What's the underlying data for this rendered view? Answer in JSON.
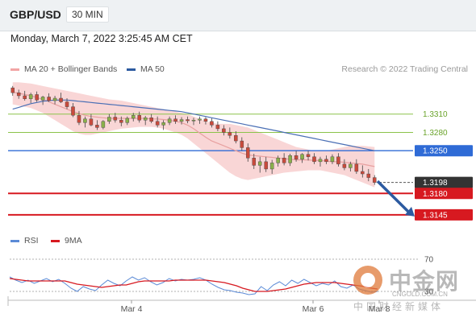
{
  "header": {
    "pair": "GBP/USD",
    "timeframe": "30 MIN"
  },
  "datetime": "Monday, March 7, 2022 3:25:45 AM CET",
  "credit": "Research © 2022 Trading Central",
  "legend": {
    "bollinger": "MA 20 + Bollinger Bands",
    "ma50": "MA 50",
    "rsi": "RSI",
    "ma9": "9MA"
  },
  "colors": {
    "bull": "#8ab04a",
    "bear": "#c94a3c",
    "bollinger": "#f2a5a5",
    "ma20": "#e8a0a0",
    "ma50": "#4a6fb5",
    "support": "#d71920",
    "resistance": "#8bc34a",
    "pivot": "#2f6bd6",
    "last": "#333333",
    "rsi": "#5b8ad6",
    "ma9": "#d71920"
  },
  "icons": {
    "arrow": "down-right-arrow-icon",
    "logo": "cngold-logo-icon"
  },
  "watermark": {
    "brand": "中金网",
    "url": "CNGOLD.COM.CN",
    "tagline": "中国财经新媒体"
  },
  "chart_data": [
    {
      "type": "line",
      "title": "GBP/USD",
      "timeframe": "30 MIN",
      "xlabel": "",
      "ylabel": "",
      "x_ticks": [
        "Mar 4",
        "Mar 6",
        "Mar 8"
      ],
      "ylim": [
        1.3125,
        1.3365
      ],
      "grid": false,
      "legend": "top-left",
      "levels": [
        {
          "label": "1.3310",
          "value": 1.331,
          "kind": "resistance"
        },
        {
          "label": "1.3280",
          "value": 1.328,
          "kind": "resistance"
        },
        {
          "label": "1.3250",
          "value": 1.325,
          "kind": "pivot"
        },
        {
          "label": "1.3198",
          "value": 1.3198,
          "kind": "last"
        },
        {
          "label": "1.3180",
          "value": 1.318,
          "kind": "support"
        },
        {
          "label": "1.3145",
          "value": 1.3145,
          "kind": "support"
        }
      ],
      "last_price": 1.3198,
      "projection": {
        "from": 1.32,
        "to": 1.3145,
        "direction": "down"
      },
      "candles": [
        [
          1.3353,
          1.3356,
          1.334,
          1.3345
        ],
        [
          1.3345,
          1.335,
          1.3335,
          1.334
        ],
        [
          1.334,
          1.3348,
          1.3332,
          1.3335
        ],
        [
          1.3335,
          1.3345,
          1.3328,
          1.3342
        ],
        [
          1.3342,
          1.3347,
          1.333,
          1.3333
        ],
        [
          1.3333,
          1.334,
          1.3325,
          1.3338
        ],
        [
          1.3338,
          1.3344,
          1.333,
          1.3332
        ],
        [
          1.3332,
          1.334,
          1.3326,
          1.3336
        ],
        [
          1.3336,
          1.3345,
          1.3328,
          1.333
        ],
        [
          1.333,
          1.3336,
          1.3318,
          1.3322
        ],
        [
          1.3322,
          1.3328,
          1.3305,
          1.3308
        ],
        [
          1.3308,
          1.3315,
          1.3292,
          1.3296
        ],
        [
          1.3296,
          1.3306,
          1.3288,
          1.3302
        ],
        [
          1.3302,
          1.331,
          1.329,
          1.3292
        ],
        [
          1.3292,
          1.33,
          1.3284,
          1.3288
        ],
        [
          1.3288,
          1.33,
          1.3285,
          1.3298
        ],
        [
          1.3298,
          1.331,
          1.3294,
          1.3305
        ],
        [
          1.3305,
          1.3312,
          1.3296,
          1.33
        ],
        [
          1.33,
          1.3306,
          1.329,
          1.3296
        ],
        [
          1.3296,
          1.3306,
          1.3292,
          1.3303
        ],
        [
          1.3303,
          1.3312,
          1.3298,
          1.3308
        ],
        [
          1.3308,
          1.3314,
          1.3296,
          1.33
        ],
        [
          1.33,
          1.3307,
          1.3292,
          1.3304
        ],
        [
          1.3304,
          1.331,
          1.3295,
          1.3298
        ],
        [
          1.3298,
          1.3306,
          1.3288,
          1.3292
        ],
        [
          1.3292,
          1.33,
          1.3284,
          1.3296
        ],
        [
          1.3296,
          1.3306,
          1.3292,
          1.3302
        ],
        [
          1.3302,
          1.3308,
          1.3294,
          1.3298
        ],
        [
          1.3298,
          1.3305,
          1.3293,
          1.3301
        ],
        [
          1.3301,
          1.3306,
          1.3295,
          1.3299
        ],
        [
          1.3299,
          1.3304,
          1.3292,
          1.33
        ],
        [
          1.33,
          1.3306,
          1.3294,
          1.3302
        ],
        [
          1.3302,
          1.3305,
          1.3293,
          1.3298
        ],
        [
          1.3298,
          1.3303,
          1.3288,
          1.3292
        ],
        [
          1.3292,
          1.3298,
          1.3282,
          1.3286
        ],
        [
          1.3286,
          1.3292,
          1.3275,
          1.328
        ],
        [
          1.328,
          1.3288,
          1.327,
          1.3275
        ],
        [
          1.3275,
          1.3282,
          1.3262,
          1.3266
        ],
        [
          1.3266,
          1.3272,
          1.325,
          1.3255
        ],
        [
          1.3255,
          1.3262,
          1.3232,
          1.3238
        ],
        [
          1.3238,
          1.3245,
          1.322,
          1.3226
        ],
        [
          1.3226,
          1.324,
          1.3214,
          1.3232
        ],
        [
          1.3232,
          1.324,
          1.3215,
          1.322
        ],
        [
          1.322,
          1.3235,
          1.3212,
          1.323
        ],
        [
          1.323,
          1.3242,
          1.3224,
          1.3238
        ],
        [
          1.3238,
          1.3246,
          1.3226,
          1.323
        ],
        [
          1.323,
          1.3245,
          1.3225,
          1.3242
        ],
        [
          1.3242,
          1.325,
          1.3232,
          1.3236
        ],
        [
          1.3236,
          1.3246,
          1.323,
          1.3244
        ],
        [
          1.3244,
          1.325,
          1.3234,
          1.324
        ],
        [
          1.324,
          1.3246,
          1.3228,
          1.3232
        ],
        [
          1.3232,
          1.324,
          1.3224,
          1.3236
        ],
        [
          1.3236,
          1.3242,
          1.3228,
          1.3232
        ],
        [
          1.3232,
          1.3244,
          1.3228,
          1.324
        ],
        [
          1.324,
          1.3246,
          1.3224,
          1.3228
        ],
        [
          1.3228,
          1.3236,
          1.3218,
          1.3222
        ],
        [
          1.3222,
          1.3232,
          1.3216,
          1.3228
        ],
        [
          1.3228,
          1.3236,
          1.3212,
          1.3216
        ],
        [
          1.3216,
          1.3226,
          1.3206,
          1.3212
        ],
        [
          1.3212,
          1.322,
          1.32,
          1.3206
        ],
        [
          1.3206,
          1.321,
          1.3194,
          1.3198
        ]
      ],
      "bollinger_upper": [
        1.3362,
        1.3362,
        1.3361,
        1.336,
        1.3358,
        1.3356,
        1.3354,
        1.3352,
        1.335,
        1.3348,
        1.3346,
        1.3344,
        1.3342,
        1.334,
        1.3338,
        1.3336,
        1.3334,
        1.3333,
        1.3332,
        1.333,
        1.3328,
        1.3326,
        1.3324,
        1.3322,
        1.332,
        1.3318,
        1.3316,
        1.3314,
        1.3312,
        1.331,
        1.3306,
        1.3302,
        1.3298,
        1.3296,
        1.3294,
        1.3294,
        1.3294,
        1.3292,
        1.329,
        1.3288,
        1.3284,
        1.328,
        1.3276,
        1.3272,
        1.3268,
        1.3264,
        1.326,
        1.3256,
        1.3254,
        1.3252,
        1.325,
        1.325,
        1.325,
        1.3252,
        1.3254,
        1.3256,
        1.3258,
        1.3258,
        1.3258,
        1.3257,
        1.3256
      ],
      "bollinger_lower": [
        1.3326,
        1.3324,
        1.3322,
        1.332,
        1.3316,
        1.3312,
        1.3306,
        1.33,
        1.3294,
        1.3288,
        1.3282,
        1.3278,
        1.3276,
        1.3276,
        1.3278,
        1.328,
        1.3282,
        1.3284,
        1.3286,
        1.3287,
        1.3288,
        1.3289,
        1.3289,
        1.3289,
        1.3288,
        1.3286,
        1.3283,
        1.328,
        1.3276,
        1.327,
        1.3262,
        1.3254,
        1.3246,
        1.3238,
        1.323,
        1.3222,
        1.3214,
        1.3208,
        1.3204,
        1.3202,
        1.3204,
        1.3206,
        1.3208,
        1.321,
        1.3212,
        1.3214,
        1.3215,
        1.3216,
        1.3217,
        1.3218,
        1.3218,
        1.3218,
        1.3216,
        1.3214,
        1.3212,
        1.321,
        1.3206,
        1.3202,
        1.3198,
        1.3194,
        1.319
      ],
      "ma20": [
        1.3346,
        1.3344,
        1.3342,
        1.334,
        1.3337,
        1.3334,
        1.333,
        1.3326,
        1.3322,
        1.3318,
        1.3314,
        1.3311,
        1.3308,
        1.3306,
        1.3305,
        1.3304,
        1.3303,
        1.3303,
        1.3303,
        1.3303,
        1.3303,
        1.3303,
        1.3303,
        1.3302,
        1.3302,
        1.3301,
        1.33,
        1.3298,
        1.3296,
        1.3292,
        1.3286,
        1.3279,
        1.3272,
        1.3266,
        1.3262,
        1.3258,
        1.3254,
        1.325,
        1.3246,
        1.3243,
        1.3242,
        1.3241,
        1.324,
        1.3239,
        1.3238,
        1.3237,
        1.3236,
        1.3235,
        1.3235,
        1.3235,
        1.3234,
        1.3234,
        1.3233,
        1.3232,
        1.3232,
        1.3231,
        1.323,
        1.3229,
        1.3228,
        1.3226,
        1.3224
      ],
      "ma50": [
        1.3318,
        1.3321,
        1.3324,
        1.3327,
        1.3329,
        1.3331,
        1.3332,
        1.3333,
        1.3333,
        1.3333,
        1.3332,
        1.3331,
        1.333,
        1.3329,
        1.3328,
        1.3327,
        1.3326,
        1.3325,
        1.3324,
        1.3323,
        1.3322,
        1.3321,
        1.332,
        1.3319,
        1.3318,
        1.3317,
        1.3316,
        1.3315,
        1.3314,
        1.3312,
        1.331,
        1.3308,
        1.3306,
        1.3304,
        1.3302,
        1.33,
        1.3298,
        1.3296,
        1.3294,
        1.3292,
        1.329,
        1.3288,
        1.3286,
        1.3284,
        1.3282,
        1.328,
        1.3278,
        1.3276,
        1.3274,
        1.3272,
        1.327,
        1.3268,
        1.3266,
        1.3264,
        1.3262,
        1.326,
        1.3258,
        1.3256,
        1.3254,
        1.3252,
        1.325
      ]
    },
    {
      "type": "line",
      "title": "RSI",
      "ylim": [
        20,
        80
      ],
      "levels": [
        {
          "label": "70",
          "value": 70
        },
        {
          "label": "30",
          "value": 30
        }
      ],
      "series": [
        {
          "name": "RSI",
          "values": [
            48,
            44,
            41,
            44,
            40,
            43,
            46,
            42,
            45,
            40,
            34,
            30,
            36,
            33,
            31,
            38,
            44,
            40,
            37,
            43,
            48,
            44,
            47,
            42,
            38,
            41,
            46,
            43,
            45,
            44,
            45,
            47,
            44,
            39,
            35,
            32,
            31,
            29,
            28,
            26,
            27,
            36,
            31,
            38,
            42,
            37,
            44,
            40,
            45,
            41,
            37,
            40,
            38,
            43,
            36,
            34,
            38,
            33,
            31,
            29,
            30
          ]
        },
        {
          "name": "9MA",
          "values": [
            46,
            45,
            44,
            43,
            43,
            43,
            43,
            43,
            43,
            43,
            41,
            39,
            38,
            37,
            36,
            35,
            36,
            37,
            38,
            38,
            40,
            42,
            43,
            43,
            43,
            43,
            43,
            44,
            44,
            44,
            44,
            44,
            44,
            43,
            42,
            41,
            39,
            37,
            34,
            32,
            30,
            30,
            30,
            31,
            32,
            33,
            35,
            37,
            39,
            40,
            41,
            41,
            41,
            41,
            40,
            39,
            38,
            37,
            36,
            34,
            33
          ]
        }
      ]
    }
  ]
}
